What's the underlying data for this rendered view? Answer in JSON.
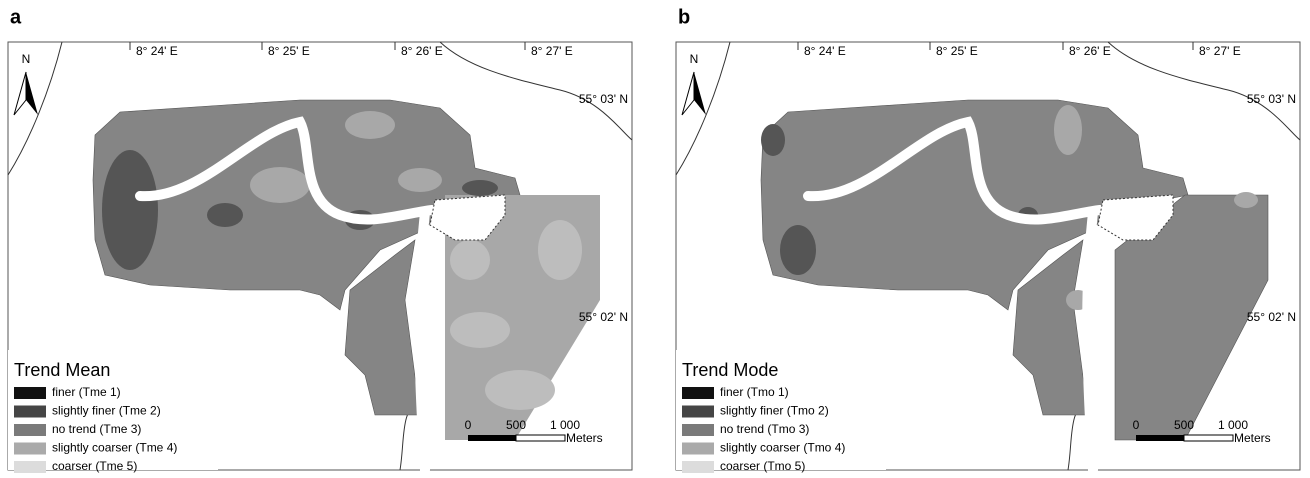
{
  "panels": [
    {
      "label": "a",
      "north": "N",
      "longitudes": [
        "8° 24' E",
        "8° 25' E",
        "8° 26' E",
        "8° 27' E"
      ],
      "latitudes": [
        "55° 03' N",
        "55° 02' N"
      ],
      "legend": {
        "title": "Trend Mean",
        "items": [
          {
            "label": "finer (Tme 1)",
            "color": "#111111"
          },
          {
            "label": "slightly finer (Tme 2)",
            "color": "#454545"
          },
          {
            "label": "no trend (Tme 3)",
            "color": "#7a7a7a"
          },
          {
            "label": "slightly coarser (Tme 4)",
            "color": "#aaaaaa"
          },
          {
            "label": "coarser (Tme 5)",
            "color": "#dcdcdc"
          }
        ]
      },
      "scale": {
        "ticks": [
          "0",
          "500",
          "1 000"
        ],
        "unit": "Meters"
      }
    },
    {
      "label": "b",
      "north": "N",
      "longitudes": [
        "8° 24' E",
        "8° 25' E",
        "8° 26' E",
        "8° 27' E"
      ],
      "latitudes": [
        "55° 03' N",
        "55° 02' N"
      ],
      "legend": {
        "title": "Trend Mode",
        "items": [
          {
            "label": "finer (Tmo 1)",
            "color": "#111111"
          },
          {
            "label": "slightly finer (Tmo 2)",
            "color": "#454545"
          },
          {
            "label": "no trend (Tmo 3)",
            "color": "#7a7a7a"
          },
          {
            "label": "slightly coarser (Tmo 4)",
            "color": "#aaaaaa"
          },
          {
            "label": "coarser (Tmo 5)",
            "color": "#dcdcdc"
          }
        ]
      },
      "scale": {
        "ticks": [
          "0",
          "500",
          "1 000"
        ],
        "unit": "Meters"
      }
    }
  ]
}
